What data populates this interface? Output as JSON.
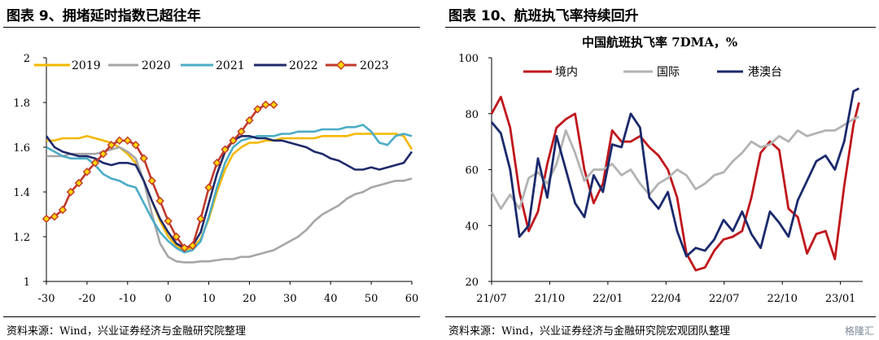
{
  "left": {
    "title": "图表 9、拥堵延时指数已超往年",
    "source": "资料来源：Wind，兴业证券经济与金融研究院整理",
    "chart_data": {
      "type": "line",
      "x": [
        -30,
        -28,
        -26,
        -24,
        -22,
        -20,
        -18,
        -16,
        -14,
        -12,
        -10,
        -8,
        -6,
        -4,
        -2,
        0,
        2,
        4,
        6,
        8,
        10,
        12,
        14,
        16,
        18,
        20,
        22,
        24,
        26,
        28,
        30,
        32,
        34,
        36,
        38,
        40,
        42,
        44,
        46,
        48,
        50,
        52,
        54,
        56,
        58,
        60
      ],
      "xlim": [
        -30,
        60
      ],
      "ylim": [
        1,
        2
      ],
      "xticks": [
        "-30",
        "-20",
        "-10",
        "0",
        "10",
        "20",
        "30",
        "40",
        "50",
        "60"
      ],
      "yticks": [
        "1",
        "1.2",
        "1.4",
        "1.6",
        "1.8",
        "2"
      ],
      "series": [
        {
          "name": "2019",
          "color": "#f5b800",
          "values": [
            1.63,
            1.63,
            1.64,
            1.64,
            1.64,
            1.65,
            1.64,
            1.63,
            1.62,
            1.6,
            1.57,
            1.53,
            1.45,
            1.36,
            1.27,
            1.2,
            1.16,
            1.14,
            1.15,
            1.19,
            1.28,
            1.4,
            1.5,
            1.57,
            1.6,
            1.62,
            1.62,
            1.63,
            1.63,
            1.64,
            1.64,
            1.64,
            1.64,
            1.64,
            1.65,
            1.65,
            1.65,
            1.65,
            1.66,
            1.66,
            1.66,
            1.66,
            1.66,
            1.66,
            1.65,
            1.59
          ]
        },
        {
          "name": "2020",
          "color": "#a6a6a6",
          "values": [
            1.56,
            1.56,
            1.56,
            1.57,
            1.57,
            1.57,
            1.57,
            1.58,
            1.59,
            1.6,
            1.58,
            1.55,
            1.45,
            1.3,
            1.17,
            1.11,
            1.09,
            1.085,
            1.085,
            1.09,
            1.09,
            1.095,
            1.1,
            1.1,
            1.11,
            1.11,
            1.12,
            1.13,
            1.14,
            1.16,
            1.18,
            1.2,
            1.23,
            1.27,
            1.3,
            1.32,
            1.34,
            1.37,
            1.39,
            1.4,
            1.42,
            1.43,
            1.44,
            1.45,
            1.45,
            1.46
          ]
        },
        {
          "name": "2021",
          "color": "#4bacc6",
          "values": [
            1.6,
            1.58,
            1.56,
            1.55,
            1.55,
            1.55,
            1.52,
            1.48,
            1.46,
            1.45,
            1.43,
            1.42,
            1.35,
            1.28,
            1.22,
            1.18,
            1.15,
            1.13,
            1.14,
            1.18,
            1.29,
            1.42,
            1.53,
            1.6,
            1.63,
            1.64,
            1.65,
            1.65,
            1.65,
            1.66,
            1.66,
            1.67,
            1.67,
            1.67,
            1.68,
            1.68,
            1.68,
            1.69,
            1.69,
            1.7,
            1.67,
            1.62,
            1.61,
            1.65,
            1.66,
            1.65
          ]
        },
        {
          "name": "2022",
          "color": "#1f2a6b",
          "values": [
            1.65,
            1.6,
            1.58,
            1.57,
            1.56,
            1.56,
            1.55,
            1.53,
            1.52,
            1.53,
            1.53,
            1.52,
            1.45,
            1.36,
            1.28,
            1.22,
            1.17,
            1.15,
            1.16,
            1.22,
            1.35,
            1.48,
            1.58,
            1.63,
            1.65,
            1.65,
            1.64,
            1.64,
            1.63,
            1.63,
            1.62,
            1.61,
            1.6,
            1.58,
            1.57,
            1.55,
            1.54,
            1.52,
            1.5,
            1.5,
            1.51,
            1.5,
            1.51,
            1.52,
            1.53,
            1.58
          ]
        }
      ],
      "highlight": {
        "name": "2023",
        "color": "#c0392b",
        "marker_color": "#ffd700",
        "x": [
          -30,
          -28,
          -26,
          -24,
          -22,
          -20,
          -18,
          -16,
          -14,
          -12,
          -10,
          -8,
          -6,
          -4,
          -2,
          0,
          2,
          4,
          6,
          8,
          10,
          12,
          14,
          16,
          18,
          20,
          22,
          24,
          26
        ],
        "values": [
          1.28,
          1.29,
          1.32,
          1.4,
          1.44,
          1.49,
          1.53,
          1.57,
          1.61,
          1.63,
          1.63,
          1.61,
          1.55,
          1.45,
          1.36,
          1.27,
          1.2,
          1.15,
          1.16,
          1.28,
          1.42,
          1.53,
          1.59,
          1.63,
          1.67,
          1.72,
          1.77,
          1.79,
          1.79
        ]
      }
    }
  },
  "right": {
    "title": "图表 10、航班执飞率持续回升",
    "source": "资料来源：Wind，兴业证券经济与金融研究院宏观团队整理",
    "watermark": "格隆汇",
    "chart_data": {
      "type": "line",
      "title": "中国航班执飞率 7DMA，%",
      "ylim": [
        20,
        100
      ],
      "xlim": [
        0,
        20
      ],
      "yticks": [
        "20",
        "40",
        "60",
        "80",
        "100"
      ],
      "xticks": [
        "21/07",
        "21/10",
        "22/01",
        "22/04",
        "22/07",
        "22/10",
        "23/01"
      ],
      "x": [
        0.0,
        0.5,
        1.0,
        1.5,
        2.0,
        2.5,
        3.0,
        3.5,
        4.0,
        4.5,
        5.0,
        5.5,
        6.0,
        6.5,
        7.0,
        7.5,
        8.0,
        8.5,
        9.0,
        9.5,
        10.0,
        10.5,
        11.0,
        11.5,
        12.0,
        12.5,
        13.0,
        13.5,
        14.0,
        14.5,
        15.0,
        15.5,
        16.0,
        16.5,
        17.0,
        17.5,
        18.0,
        18.5,
        19.0,
        19.5,
        19.8
      ],
      "series": [
        {
          "name": "境内",
          "color": "#c0161c",
          "values": [
            80,
            86,
            75,
            52,
            38,
            45,
            62,
            75,
            78,
            80,
            60,
            48,
            55,
            74,
            70,
            70,
            72,
            68,
            65,
            60,
            50,
            30,
            24,
            25,
            31,
            35,
            36,
            38,
            50,
            66,
            70,
            67,
            46,
            43,
            30,
            37,
            38,
            28,
            54,
            76,
            84
          ]
        },
        {
          "name": "国际",
          "color": "#b3b3b3",
          "values": [
            52,
            46,
            51,
            46,
            57,
            59,
            55,
            62,
            74,
            66,
            56,
            60,
            60,
            62,
            58,
            60,
            55,
            51,
            55,
            57,
            60,
            58,
            53,
            55,
            58,
            59,
            63,
            66,
            70,
            68,
            69,
            72,
            70,
            74,
            72,
            73,
            74,
            74,
            76,
            78,
            79
          ]
        },
        {
          "name": "港澳台",
          "color": "#1a2a6c",
          "values": [
            77,
            73,
            60,
            36,
            40,
            64,
            50,
            72,
            60,
            48,
            43,
            58,
            52,
            69,
            68,
            80,
            75,
            50,
            46,
            52,
            38,
            29,
            32,
            31,
            35,
            42,
            38,
            45,
            37,
            32,
            45,
            41,
            36,
            49,
            56,
            63,
            65,
            60,
            70,
            88,
            89
          ]
        }
      ]
    }
  }
}
